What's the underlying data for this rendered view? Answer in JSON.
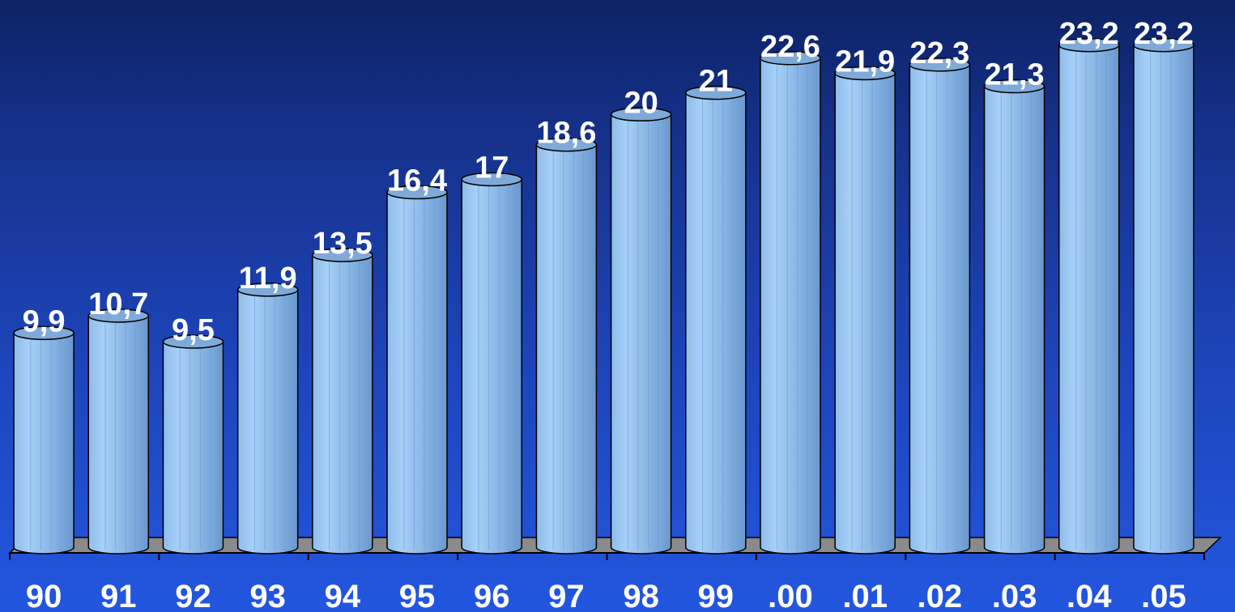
{
  "chart_data": {
    "type": "bar",
    "style": "3d-cylinder",
    "categories": [
      "90",
      "91",
      "92",
      "93",
      "94",
      "95",
      "96",
      "97",
      "98",
      "99",
      ".00",
      ".01",
      ".02",
      ".03",
      ".04",
      ".05"
    ],
    "values": [
      9.9,
      10.7,
      9.5,
      11.9,
      13.5,
      16.4,
      17,
      18.6,
      20,
      21,
      22.6,
      21.9,
      22.3,
      21.3,
      23.2,
      23.2
    ],
    "data_labels": [
      "9,9",
      "10,7",
      "9,5",
      "11,9",
      "13,5",
      "16,4",
      "17",
      "18,6",
      "20",
      "21",
      "22,6",
      "21,9",
      "22,3",
      "21,3",
      "23,2",
      "23,2"
    ],
    "title": "",
    "xlabel": "",
    "ylabel": "",
    "ylim": [
      0,
      24.5
    ],
    "grid": false,
    "legend": "none",
    "colors": {
      "bar_light": "#9fcbf7",
      "bar_mid": "#86b6e8",
      "bar_dark": "#6f9fd6",
      "bar_top": "#7fa9d8",
      "floor": "#8a8a8a",
      "outline": "#000000",
      "text": "#ffffff"
    }
  }
}
